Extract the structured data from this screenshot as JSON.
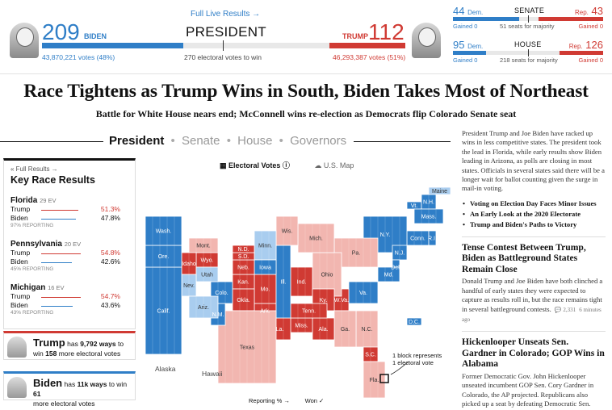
{
  "scoreboard": {
    "live_link": "Full Live Results →",
    "title": "PRESIDENT",
    "biden": {
      "ev": "209",
      "name": "BIDEN",
      "votes": "43,870,221 votes (48%)",
      "ev_value": 209
    },
    "trump": {
      "ev": "112",
      "name": "TRUMP",
      "votes": "46,293,387 votes (51%)",
      "ev_value": 112
    },
    "needed": "270 electoral votes to win",
    "total_ev": 538
  },
  "senate": {
    "dem_num": "44",
    "dem_label": "Dem.",
    "title": "SENATE",
    "rep_label": "Rep.",
    "rep_num": "43",
    "gained_d": "Gained 0",
    "majority": "51 seats for majority",
    "gained_r": "Gained 0",
    "dem_value": 44,
    "rep_value": 43,
    "total": 100
  },
  "house": {
    "dem_num": "95",
    "dem_label": "Dem.",
    "title": "HOUSE",
    "rep_label": "Rep.",
    "rep_num": "126",
    "gained_d": "Gained 0",
    "majority": "218 seats for majority",
    "gained_r": "Gained 0",
    "dem_value": 95,
    "rep_value": 126,
    "total": 435
  },
  "headline": "Race Tightens as Trump Wins in South, Biden Takes Most of Northeast",
  "subhead": "Battle for White House nears end; McConnell wins re-election as Democrats flip Colorado Senate seat",
  "tabs": {
    "president": "President",
    "senate": "Senate",
    "house": "House",
    "governors": "Governors",
    "sep": "•"
  },
  "key_races": {
    "full_results": "« Full Results →",
    "title": "Key Race Results",
    "races": [
      {
        "state": "Florida",
        "ev": "29 EV",
        "c1": "Trump",
        "p1": "51.3%",
        "c2": "Biden",
        "p2": "47.8%",
        "v1": 51.3,
        "v2": 47.8,
        "reporting": "97% REPORTING"
      },
      {
        "state": "Pennsylvania",
        "ev": "20 EV",
        "c1": "Trump",
        "p1": "54.8%",
        "c2": "Biden",
        "p2": "42.6%",
        "v1": 54.8,
        "v2": 42.6,
        "reporting": "45% REPORTING"
      },
      {
        "state": "Michigan",
        "ev": "16 EV",
        "c1": "Trump",
        "p1": "54.7%",
        "c2": "Biden",
        "p2": "43.6%",
        "v1": 54.7,
        "v2": 43.6,
        "reporting": "43% REPORTING"
      }
    ]
  },
  "ways": {
    "trump": {
      "name": "Trump",
      "has": "has",
      "ways": "9,792 ways",
      "to": "to",
      "win": "win",
      "seats": "158",
      "more": "more electoral votes"
    },
    "biden": {
      "name": "Biden",
      "has": "has",
      "ways": "11k ways",
      "to": "to win",
      "seats": "61",
      "more": "more electoral votes"
    }
  },
  "map": {
    "legend_ev": "Electoral Votes",
    "legend_us": "U.S. Map",
    "note_line1": "1 block represents",
    "note_line2": "1 electoral vote",
    "reporting": "Reporting % →",
    "won": "Won ✓",
    "alaska": "Alaska",
    "hawaii": "Hawaii",
    "states": [
      {
        "abbr": "Maine",
        "party": "dlight"
      },
      {
        "abbr": "Vt.",
        "party": "d"
      },
      {
        "abbr": "N.H.",
        "party": "d"
      },
      {
        "abbr": "Mass.",
        "party": "d"
      },
      {
        "abbr": "Conn.",
        "party": "d"
      },
      {
        "abbr": "R.I.",
        "party": "d"
      },
      {
        "abbr": "N.Y.",
        "party": "d"
      },
      {
        "abbr": "Pa.",
        "party": "rlight"
      },
      {
        "abbr": "N.J.",
        "party": "d"
      },
      {
        "abbr": "Del.",
        "party": "d"
      },
      {
        "abbr": "Md.",
        "party": "d"
      },
      {
        "abbr": "D.C.",
        "party": "d"
      },
      {
        "abbr": "Va.",
        "party": "d"
      },
      {
        "abbr": "W.Va.",
        "party": "r"
      },
      {
        "abbr": "Ohio",
        "party": "rlight"
      },
      {
        "abbr": "Mich.",
        "party": "rlight"
      },
      {
        "abbr": "Ind.",
        "party": "r"
      },
      {
        "abbr": "Ky.",
        "party": "r"
      },
      {
        "abbr": "N.C.",
        "party": "rlight"
      },
      {
        "abbr": "S.C.",
        "party": "r"
      },
      {
        "abbr": "Ga.",
        "party": "rlight"
      },
      {
        "abbr": "Fla.",
        "party": "rlight"
      },
      {
        "abbr": "Ala.",
        "party": "r"
      },
      {
        "abbr": "Miss.",
        "party": "r"
      },
      {
        "abbr": "Tenn.",
        "party": "r"
      },
      {
        "abbr": "La.",
        "party": "r"
      },
      {
        "abbr": "Ark.",
        "party": "r"
      },
      {
        "abbr": "Mo.",
        "party": "r"
      },
      {
        "abbr": "Ill.",
        "party": "d"
      },
      {
        "abbr": "Wis.",
        "party": "rlight"
      },
      {
        "abbr": "Minn.",
        "party": "dlight"
      },
      {
        "abbr": "Iowa",
        "party": "d"
      },
      {
        "abbr": "Kan.",
        "party": "r"
      },
      {
        "abbr": "Neb.",
        "party": "r"
      },
      {
        "abbr": "S.D.",
        "party": "r"
      },
      {
        "abbr": "N.D.",
        "party": "r"
      },
      {
        "abbr": "Okla.",
        "party": "r"
      },
      {
        "abbr": "Texas",
        "party": "rlight"
      },
      {
        "abbr": "N.M.",
        "party": "d"
      },
      {
        "abbr": "Colo.",
        "party": "d"
      },
      {
        "abbr": "Wyo.",
        "party": "r"
      },
      {
        "abbr": "Mont.",
        "party": "rlight"
      },
      {
        "abbr": "Idaho",
        "party": "r"
      },
      {
        "abbr": "Utah",
        "party": "dlight"
      },
      {
        "abbr": "Nev.",
        "party": "dlight"
      },
      {
        "abbr": "Ariz.",
        "party": "dlight"
      },
      {
        "abbr": "Calif.",
        "party": "d"
      },
      {
        "abbr": "Ore.",
        "party": "d"
      },
      {
        "abbr": "Wash.",
        "party": "d"
      }
    ]
  },
  "right": {
    "lead": "President Trump and Joe Biden have racked up wins in less competitive states. The president took the lead in Florida, while early results show Biden leading in Arizona, as polls are closing in most states. Officials in several states said there will be a longer wait for ballot counting given the surge in mail-in voting.",
    "bullets": [
      "Voting on Election Day Faces Minor Issues",
      "An Early Look at the 2020 Electorate",
      "Trump and Biden's Paths to Victory"
    ],
    "story1_h": "Tense Contest Between Trump, Biden as Battleground States Remain Close",
    "story1_p": "Donald Trump and Joe Biden have both clinched a handful of early states they were expected to capture as results roll in, but the race remains tight in several battleground contests.",
    "story1_comments": "💬 2,331",
    "story1_ago": "6 minutes ago",
    "story2_h": "Hickenlooper Unseats Sen. Gardner in Colorado; GOP Wins in Alabama",
    "story2_p": "Former Democratic Gov. John Hickenlooper unseated incumbent GOP Sen. Cory Gardner in Colorado, the AP projected. Republicans also picked up a seat by defeating Democratic Sen."
  },
  "colors": {
    "dem": "#2f7ec7",
    "rep": "#d03a33",
    "dem_light": "#a9cdef",
    "rep_light": "#f2b6b0"
  }
}
